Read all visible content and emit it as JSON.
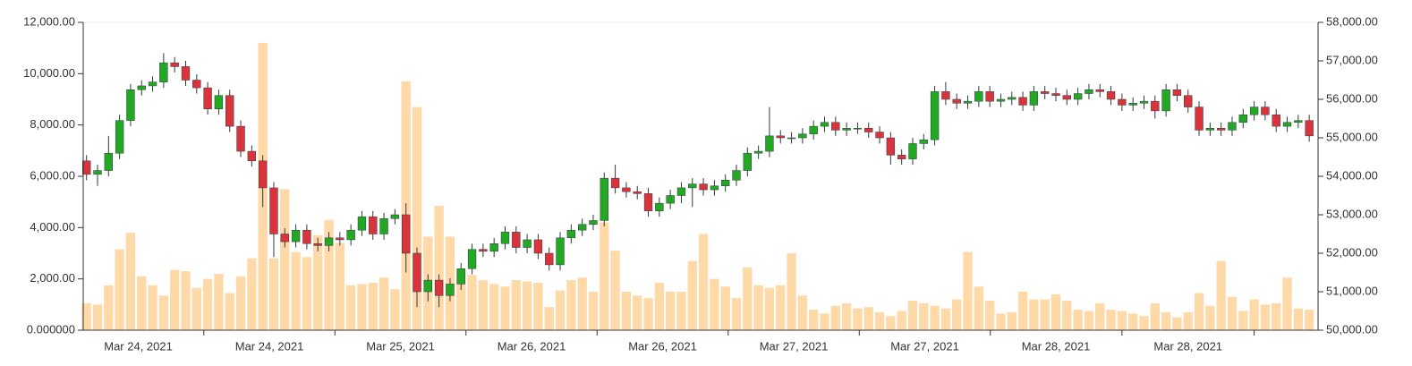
{
  "chart_data": {
    "type": "candlestick",
    "ylim": [
      0,
      12000
    ],
    "yticks": [
      {
        "value": 0,
        "label": "0.000000"
      },
      {
        "value": 2000,
        "label": "2,000.00"
      },
      {
        "value": 4000,
        "label": "4,000.00"
      },
      {
        "value": 6000,
        "label": "6,000.00"
      },
      {
        "value": 8000,
        "label": "8,000.00"
      },
      {
        "value": 10000,
        "label": "10,000.00"
      },
      {
        "value": 12000,
        "label": "12,000.00"
      }
    ],
    "y2lim": [
      50000,
      58000
    ],
    "y2ticks": [
      {
        "value": 50000,
        "label": "50,000.00"
      },
      {
        "value": 51000,
        "label": "51,000.00"
      },
      {
        "value": 52000,
        "label": "52,000.00"
      },
      {
        "value": 53000,
        "label": "53,000.00"
      },
      {
        "value": 54000,
        "label": "54,000.00"
      },
      {
        "value": 55000,
        "label": "55,000.00"
      },
      {
        "value": 56000,
        "label": "56,000.00"
      },
      {
        "value": 57000,
        "label": "57,000.00"
      },
      {
        "value": 58000,
        "label": "58,000.00"
      }
    ],
    "xlim": [
      -0.3,
      111.8
    ],
    "xticks": [
      {
        "value": 4.7,
        "label": "Mar 24, 2021"
      },
      {
        "value": 16.6,
        "label": "Mar 24, 2021"
      },
      {
        "value": 28.5,
        "label": "Mar 25, 2021"
      },
      {
        "value": 40.4,
        "label": "Mar 26, 2021"
      },
      {
        "value": 52.3,
        "label": "Mar 26, 2021"
      },
      {
        "value": 64.2,
        "label": "Mar 27, 2021"
      },
      {
        "value": 76.1,
        "label": "Mar 27, 2021"
      },
      {
        "value": 88.0,
        "label": "Mar 28, 2021"
      },
      {
        "value": 100.0,
        "label": "Mar 28, 2021"
      }
    ],
    "candles": {
      "axis": "y2",
      "up_color": "#22a822",
      "down_color": "#d9343c",
      "wick_color": "#2f3a40",
      "open": [
        54400,
        54050,
        54150,
        54600,
        55450,
        56250,
        56350,
        56450,
        56950,
        56850,
        56500,
        56300,
        55750,
        56100,
        55300,
        54650,
        54400,
        53700,
        52500,
        52300,
        52600,
        52250,
        52200,
        52400,
        52350,
        52600,
        52950,
        52500,
        52900,
        53000,
        52000,
        51000,
        51300,
        50900,
        51200,
        51600,
        52100,
        52050,
        52250,
        52550,
        52150,
        52350,
        52000,
        51700,
        52400,
        52600,
        52750,
        52850,
        53950,
        53700,
        53600,
        53550,
        53100,
        53300,
        53500,
        53700,
        53800,
        53650,
        53750,
        53900,
        54150,
        54600,
        54650,
        55050,
        55000,
        55000,
        55100,
        55300,
        55400,
        55200,
        55250,
        55250,
        55150,
        55000,
        54550,
        54450,
        54850,
        54950,
        56200,
        56000,
        55900,
        55950,
        56200,
        55950,
        56000,
        56050,
        55850,
        56200,
        56150,
        56100,
        56000,
        56150,
        56250,
        56200,
        56000,
        55850,
        55900,
        55950,
        55700,
        56250,
        56100,
        55800,
        55200,
        55250,
        55200,
        55400,
        55600,
        55800,
        55600,
        55300,
        55400,
        55450
      ],
      "high": [
        54550,
        54300,
        55050,
        55600,
        56400,
        56500,
        56600,
        57200,
        57100,
        57000,
        56650,
        56450,
        56250,
        56250,
        55450,
        54800,
        54550,
        53850,
        52650,
        52750,
        52750,
        52400,
        52550,
        52550,
        52750,
        53100,
        53100,
        53050,
        53150,
        53300,
        52150,
        51450,
        51450,
        51350,
        51750,
        52250,
        52250,
        52400,
        52700,
        52700,
        52500,
        52500,
        52150,
        52550,
        52750,
        52900,
        53000,
        54100,
        54300,
        53850,
        53750,
        53700,
        53450,
        53650,
        53850,
        53950,
        53950,
        53900,
        54050,
        54300,
        54750,
        54800,
        55800,
        55200,
        55150,
        55250,
        55450,
        55550,
        55550,
        55400,
        55400,
        55400,
        55300,
        55150,
        54700,
        55000,
        55100,
        56350,
        56450,
        56150,
        56100,
        56350,
        56350,
        56150,
        56200,
        56200,
        56350,
        56350,
        56300,
        56250,
        56300,
        56400,
        56400,
        56350,
        56150,
        56050,
        56100,
        56100,
        56400,
        56400,
        56250,
        55950,
        55400,
        55400,
        55550,
        55750,
        55950,
        55950,
        55750,
        55550,
        55600,
        55600
      ],
      "low": [
        53900,
        53750,
        54000,
        54450,
        55300,
        56100,
        56200,
        56300,
        56700,
        56350,
        56150,
        55600,
        55600,
        55150,
        54500,
        54250,
        53200,
        51900,
        52150,
        52150,
        52100,
        52050,
        52050,
        52200,
        52200,
        52450,
        52350,
        52350,
        52750,
        51500,
        50600,
        50750,
        50600,
        50750,
        51050,
        51450,
        51900,
        51900,
        52100,
        52000,
        52000,
        51850,
        51550,
        51550,
        52250,
        52450,
        52600,
        52700,
        53550,
        53450,
        53400,
        52950,
        52950,
        53150,
        53300,
        53200,
        53500,
        53500,
        53600,
        53750,
        54000,
        54450,
        54500,
        54850,
        54850,
        54850,
        54950,
        55150,
        55050,
        55050,
        55100,
        55000,
        54850,
        54300,
        54300,
        54300,
        54700,
        54800,
        55850,
        55750,
        55750,
        55800,
        55800,
        55800,
        55850,
        55700,
        55700,
        56000,
        55950,
        55850,
        55850,
        56000,
        56050,
        55850,
        55700,
        55700,
        55750,
        55500,
        55550,
        55950,
        55650,
        55050,
        55050,
        55050,
        55050,
        55250,
        55450,
        55450,
        55150,
        55150,
        55250,
        54900
      ],
      "close": [
        54050,
        54150,
        54600,
        55450,
        56250,
        56350,
        56450,
        56950,
        56850,
        56500,
        56300,
        55750,
        56100,
        55300,
        54650,
        54400,
        53700,
        52500,
        52300,
        52600,
        52250,
        52200,
        52400,
        52350,
        52600,
        52950,
        52500,
        52900,
        53000,
        52000,
        51000,
        51300,
        50900,
        51200,
        51600,
        52100,
        52050,
        52250,
        52550,
        52150,
        52350,
        52000,
        51700,
        52400,
        52600,
        52750,
        52850,
        53950,
        53700,
        53600,
        53550,
        53100,
        53300,
        53500,
        53700,
        53800,
        53650,
        53750,
        53900,
        54150,
        54600,
        54650,
        55050,
        55000,
        55000,
        55100,
        55300,
        55400,
        55200,
        55250,
        55250,
        55150,
        55000,
        54550,
        54450,
        54850,
        54950,
        56200,
        56000,
        55900,
        55950,
        56200,
        55950,
        56000,
        56050,
        55850,
        56200,
        56150,
        56100,
        56000,
        56150,
        56250,
        56200,
        56000,
        55850,
        55900,
        55950,
        55700,
        56250,
        56100,
        55800,
        55200,
        55250,
        55200,
        55400,
        55600,
        55800,
        55600,
        55300,
        55400,
        55450,
        55050
      ]
    },
    "volume": {
      "color": "#ffd9a8",
      "values": [
        1050,
        1000,
        1750,
        3150,
        3800,
        2100,
        1750,
        1350,
        2350,
        2300,
        1650,
        2000,
        2200,
        1450,
        2100,
        2800,
        11200,
        2800,
        5500,
        3050,
        2850,
        3700,
        4300,
        3400,
        1750,
        1800,
        1850,
        2050,
        1600,
        9700,
        8700,
        3650,
        4850,
        3650,
        2300,
        2150,
        1950,
        1800,
        1700,
        1950,
        1900,
        1850,
        900,
        1550,
        1950,
        2050,
        1500,
        4200,
        3100,
        1500,
        1350,
        1250,
        1850,
        1500,
        1500,
        2700,
        3750,
        2000,
        1700,
        1250,
        2450,
        1750,
        1650,
        1750,
        3000,
        1350,
        800,
        650,
        950,
        1050,
        850,
        900,
        700,
        550,
        750,
        1150,
        1050,
        950,
        850,
        1200,
        3050,
        1700,
        1150,
        650,
        700,
        1500,
        1200,
        1200,
        1400,
        1150,
        800,
        750,
        1050,
        800,
        750,
        650,
        550,
        1050,
        700,
        500,
        700,
        1450,
        950,
        2700,
        1300,
        750,
        1200,
        1000,
        1050,
        2050,
        850,
        800
      ]
    }
  }
}
